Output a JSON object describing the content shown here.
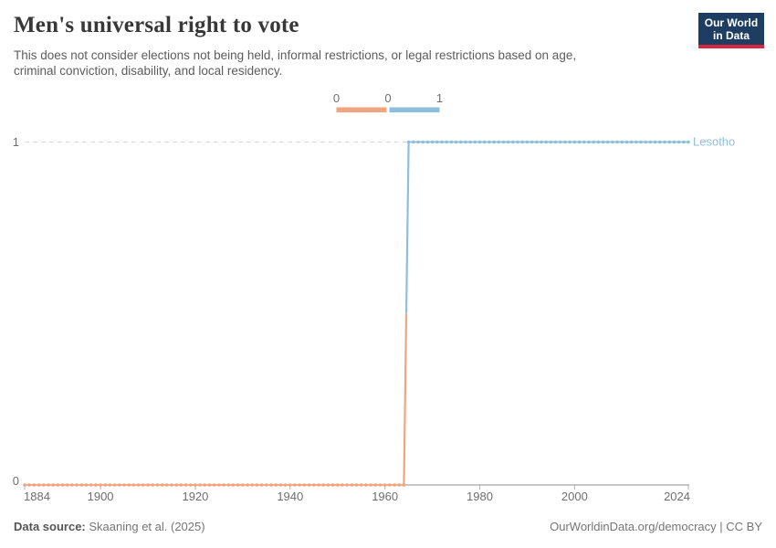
{
  "header": {
    "title": "Men's universal right to vote",
    "subtitle_lines": [
      "This does not consider elections not being held, informal restrictions, or legal restrictions based on age,",
      "criminal conviction, disability, and local residency."
    ],
    "logo": {
      "line1": "Our World",
      "line2": "in Data",
      "bg_color": "#1D3D63",
      "accent_color": "#D7263D"
    }
  },
  "chart_data": {
    "type": "line",
    "title": "Men's universal right to vote",
    "entity": "Lesotho",
    "xlim": [
      1884,
      2024
    ],
    "ylim": [
      0,
      1
    ],
    "x_ticks": [
      1884,
      1900,
      1920,
      1940,
      1960,
      1980,
      2000,
      2024
    ],
    "y_ticks": [
      0,
      1
    ],
    "grid": "dashed horizontal gridline at y=1, solid axis at y=0",
    "value_colors": {
      "0": "#F2A47E",
      "1": "#8FBEDC"
    },
    "series": [
      {
        "name": "Lesotho",
        "label_color": "#8FBEDC",
        "segments": [
          {
            "start_year": 1884,
            "end_year": 1964,
            "value": 0
          },
          {
            "start_year": 1965,
            "end_year": 2024,
            "value": 1
          }
        ]
      }
    ],
    "legend": {
      "bins": [
        {
          "value": "0",
          "color": "#F2A47E"
        },
        {
          "value": "1",
          "color": "#8FBEDC"
        }
      ],
      "tick_labels": [
        "0",
        "0",
        "1"
      ]
    }
  },
  "footer": {
    "source_label": "Data source:",
    "source_value": "Skaaning et al. (2025)",
    "right_text": "OurWorldinData.org/democracy | CC BY"
  }
}
